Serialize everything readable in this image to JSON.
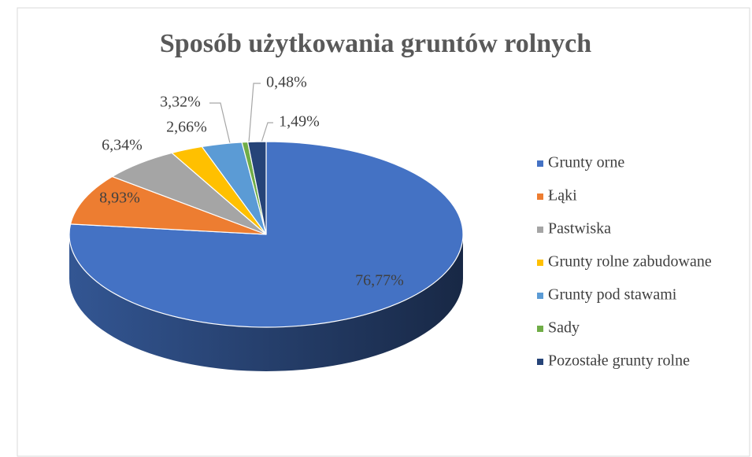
{
  "chart_data": {
    "type": "pie3d",
    "title": "Sposób użytkowania gruntów rolnych",
    "categories": [
      "Grunty orne",
      "Łąki",
      "Pastwiska",
      "Grunty rolne zabudowane",
      "Grunty pod stawami",
      "Sady",
      "Pozostałe grunty rolne"
    ],
    "values": [
      76.77,
      8.93,
      6.34,
      2.66,
      3.32,
      0.48,
      1.49
    ],
    "value_labels": [
      "76,77%",
      "8,93%",
      "6,34%",
      "2,66%",
      "3,32%",
      "0,48%",
      "1,49%"
    ],
    "colors": [
      "#4472c4",
      "#ed7d31",
      "#a5a5a5",
      "#ffc000",
      "#5b9bd5",
      "#70ad47",
      "#264478"
    ],
    "legend": "right"
  }
}
